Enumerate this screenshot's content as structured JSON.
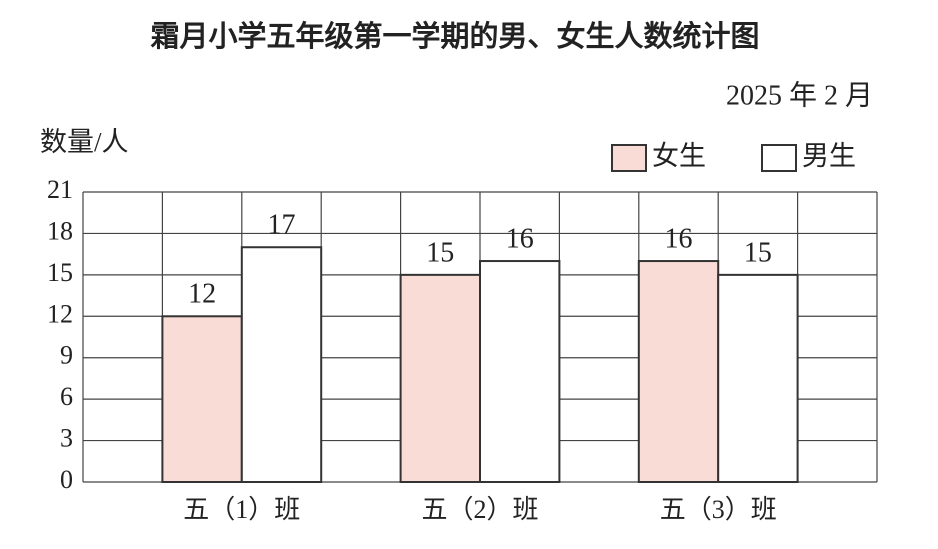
{
  "chart_data": {
    "type": "bar",
    "title": "霜月小学五年级第一学期的男、女生人数统计图",
    "subtitle": "2025 年 2 月",
    "y_label": "数量/人",
    "categories": [
      "五（1）班",
      "五（2）班",
      "五（3）班"
    ],
    "series": [
      {
        "name": "女生",
        "color": "#f9dcd5",
        "values": [
          12,
          15,
          16
        ]
      },
      {
        "name": "男生",
        "color": "#ffffff",
        "values": [
          17,
          16,
          15
        ]
      }
    ],
    "ylim": [
      0,
      21
    ],
    "yticks": [
      0,
      3,
      6,
      9,
      12,
      15,
      18,
      21
    ],
    "grid": true
  }
}
